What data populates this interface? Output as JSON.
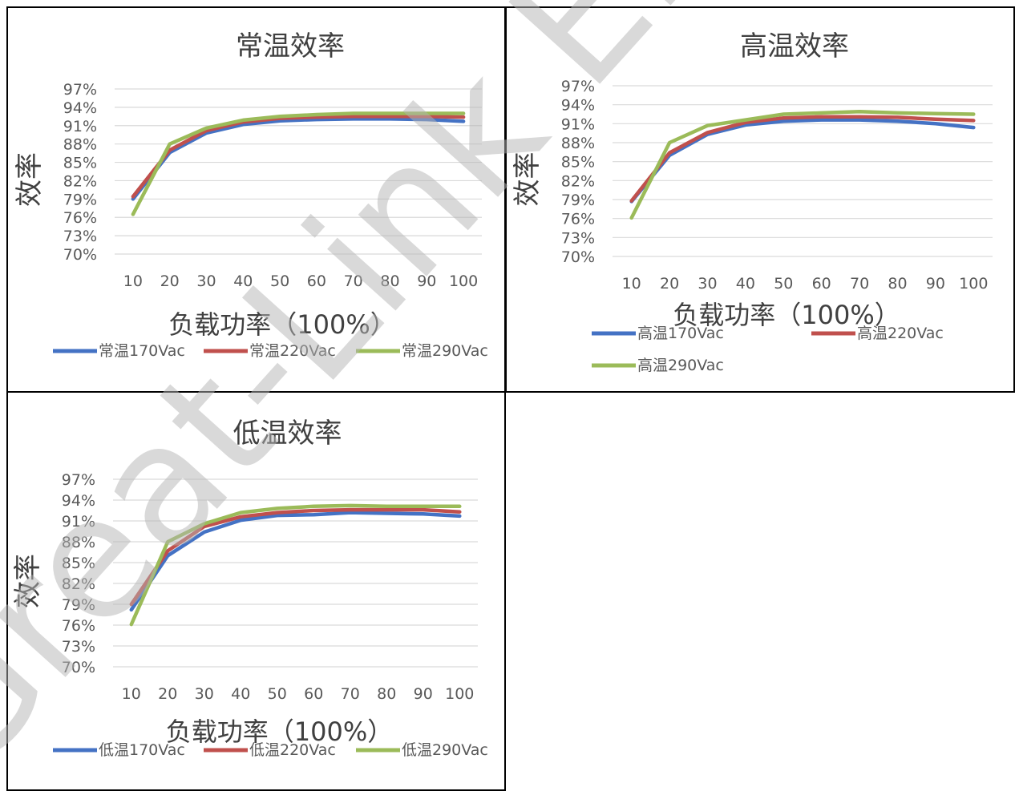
{
  "colors": {
    "blue": "#4472c4",
    "red": "#c0504d",
    "green": "#9bbb59",
    "grid": "#d9d9d9",
    "text": "#404040"
  },
  "watermark": {
    "text": "Great-Link El"
  },
  "charts": [
    {
      "title": "常温效率",
      "ylabel": "效率",
      "xlabel": "负载功率（100%）",
      "yticks": [
        "97%",
        "94%",
        "91%",
        "88%",
        "85%",
        "82%",
        "79%",
        "76%",
        "73%",
        "70%"
      ],
      "xticks": [
        "10",
        "20",
        "30",
        "40",
        "50",
        "60",
        "70",
        "80",
        "90",
        "100"
      ],
      "legend_layout": "row",
      "legend": [
        "常温170Vac",
        "常温220Vac",
        "常温290Vac"
      ]
    },
    {
      "title": "高温效率",
      "ylabel": "效率",
      "xlabel": "负载功率（100%）",
      "yticks": [
        "97%",
        "94%",
        "91%",
        "88%",
        "85%",
        "82%",
        "79%",
        "76%",
        "73%",
        "70%"
      ],
      "xticks": [
        "10",
        "20",
        "30",
        "40",
        "50",
        "60",
        "70",
        "80",
        "90",
        "100"
      ],
      "legend_layout": "grid",
      "legend": [
        "高温170Vac",
        "高温220Vac",
        "高温290Vac"
      ]
    },
    {
      "title": "低温效率",
      "ylabel": "效率",
      "xlabel": "负载功率（100%）",
      "yticks": [
        "97%",
        "94%",
        "91%",
        "88%",
        "85%",
        "82%",
        "79%",
        "76%",
        "73%",
        "70%"
      ],
      "xticks": [
        "10",
        "20",
        "30",
        "40",
        "50",
        "60",
        "70",
        "80",
        "90",
        "100"
      ],
      "legend_layout": "row",
      "legend": [
        "低温170Vac",
        "低温220Vac",
        "低温290Vac"
      ]
    }
  ],
  "chart_data": [
    {
      "type": "line",
      "title": "常温效率",
      "xlabel": "负载功率（100%）",
      "ylabel": "效率",
      "categories": [
        10,
        20,
        30,
        40,
        50,
        60,
        70,
        80,
        90,
        100
      ],
      "ylim": [
        70,
        97
      ],
      "grid": true,
      "legend_position": "bottom",
      "series": [
        {
          "name": "常温170Vac",
          "color": "#4472c4",
          "values": [
            79.0,
            86.6,
            89.8,
            91.2,
            91.8,
            92.0,
            92.1,
            92.1,
            92.0,
            91.7
          ]
        },
        {
          "name": "常温220Vac",
          "color": "#c0504d",
          "values": [
            79.4,
            87.0,
            90.2,
            91.6,
            92.2,
            92.4,
            92.5,
            92.5,
            92.5,
            92.4
          ]
        },
        {
          "name": "常温290Vac",
          "color": "#9bbb59",
          "values": [
            76.5,
            88.0,
            90.6,
            91.9,
            92.5,
            92.8,
            93.0,
            93.0,
            93.0,
            93.0
          ]
        }
      ]
    },
    {
      "type": "line",
      "title": "高温效率",
      "xlabel": "负载功率（100%）",
      "ylabel": "效率",
      "categories": [
        10,
        20,
        30,
        40,
        50,
        60,
        70,
        80,
        90,
        100
      ],
      "ylim": [
        70,
        97
      ],
      "grid": true,
      "legend_position": "bottom",
      "series": [
        {
          "name": "高温170Vac",
          "color": "#4472c4",
          "values": [
            78.7,
            86.0,
            89.3,
            90.8,
            91.4,
            91.6,
            91.6,
            91.4,
            91.0,
            90.4
          ]
        },
        {
          "name": "高温220Vac",
          "color": "#c0504d",
          "values": [
            78.8,
            86.4,
            89.6,
            91.2,
            91.9,
            92.1,
            92.1,
            92.0,
            91.7,
            91.5
          ]
        },
        {
          "name": "高温290Vac",
          "color": "#9bbb59",
          "values": [
            76.1,
            88.0,
            90.7,
            91.6,
            92.5,
            92.7,
            92.9,
            92.7,
            92.6,
            92.5
          ]
        }
      ]
    },
    {
      "type": "line",
      "title": "低温效率",
      "xlabel": "负载功率（100%）",
      "ylabel": "效率",
      "categories": [
        10,
        20,
        30,
        40,
        50,
        60,
        70,
        80,
        90,
        100
      ],
      "ylim": [
        70,
        97
      ],
      "grid": true,
      "legend_position": "bottom",
      "series": [
        {
          "name": "低温170Vac",
          "color": "#4472c4",
          "values": [
            78.2,
            86.0,
            89.4,
            91.1,
            91.8,
            91.9,
            92.2,
            92.1,
            92.0,
            91.7
          ]
        },
        {
          "name": "低温220Vac",
          "color": "#c0504d",
          "values": [
            79.0,
            86.7,
            90.2,
            91.6,
            92.2,
            92.5,
            92.6,
            92.6,
            92.6,
            92.3
          ]
        },
        {
          "name": "低温290Vac",
          "color": "#9bbb59",
          "values": [
            76.1,
            88.0,
            90.6,
            92.2,
            92.8,
            93.1,
            93.2,
            93.1,
            93.1,
            93.1
          ]
        }
      ]
    }
  ]
}
